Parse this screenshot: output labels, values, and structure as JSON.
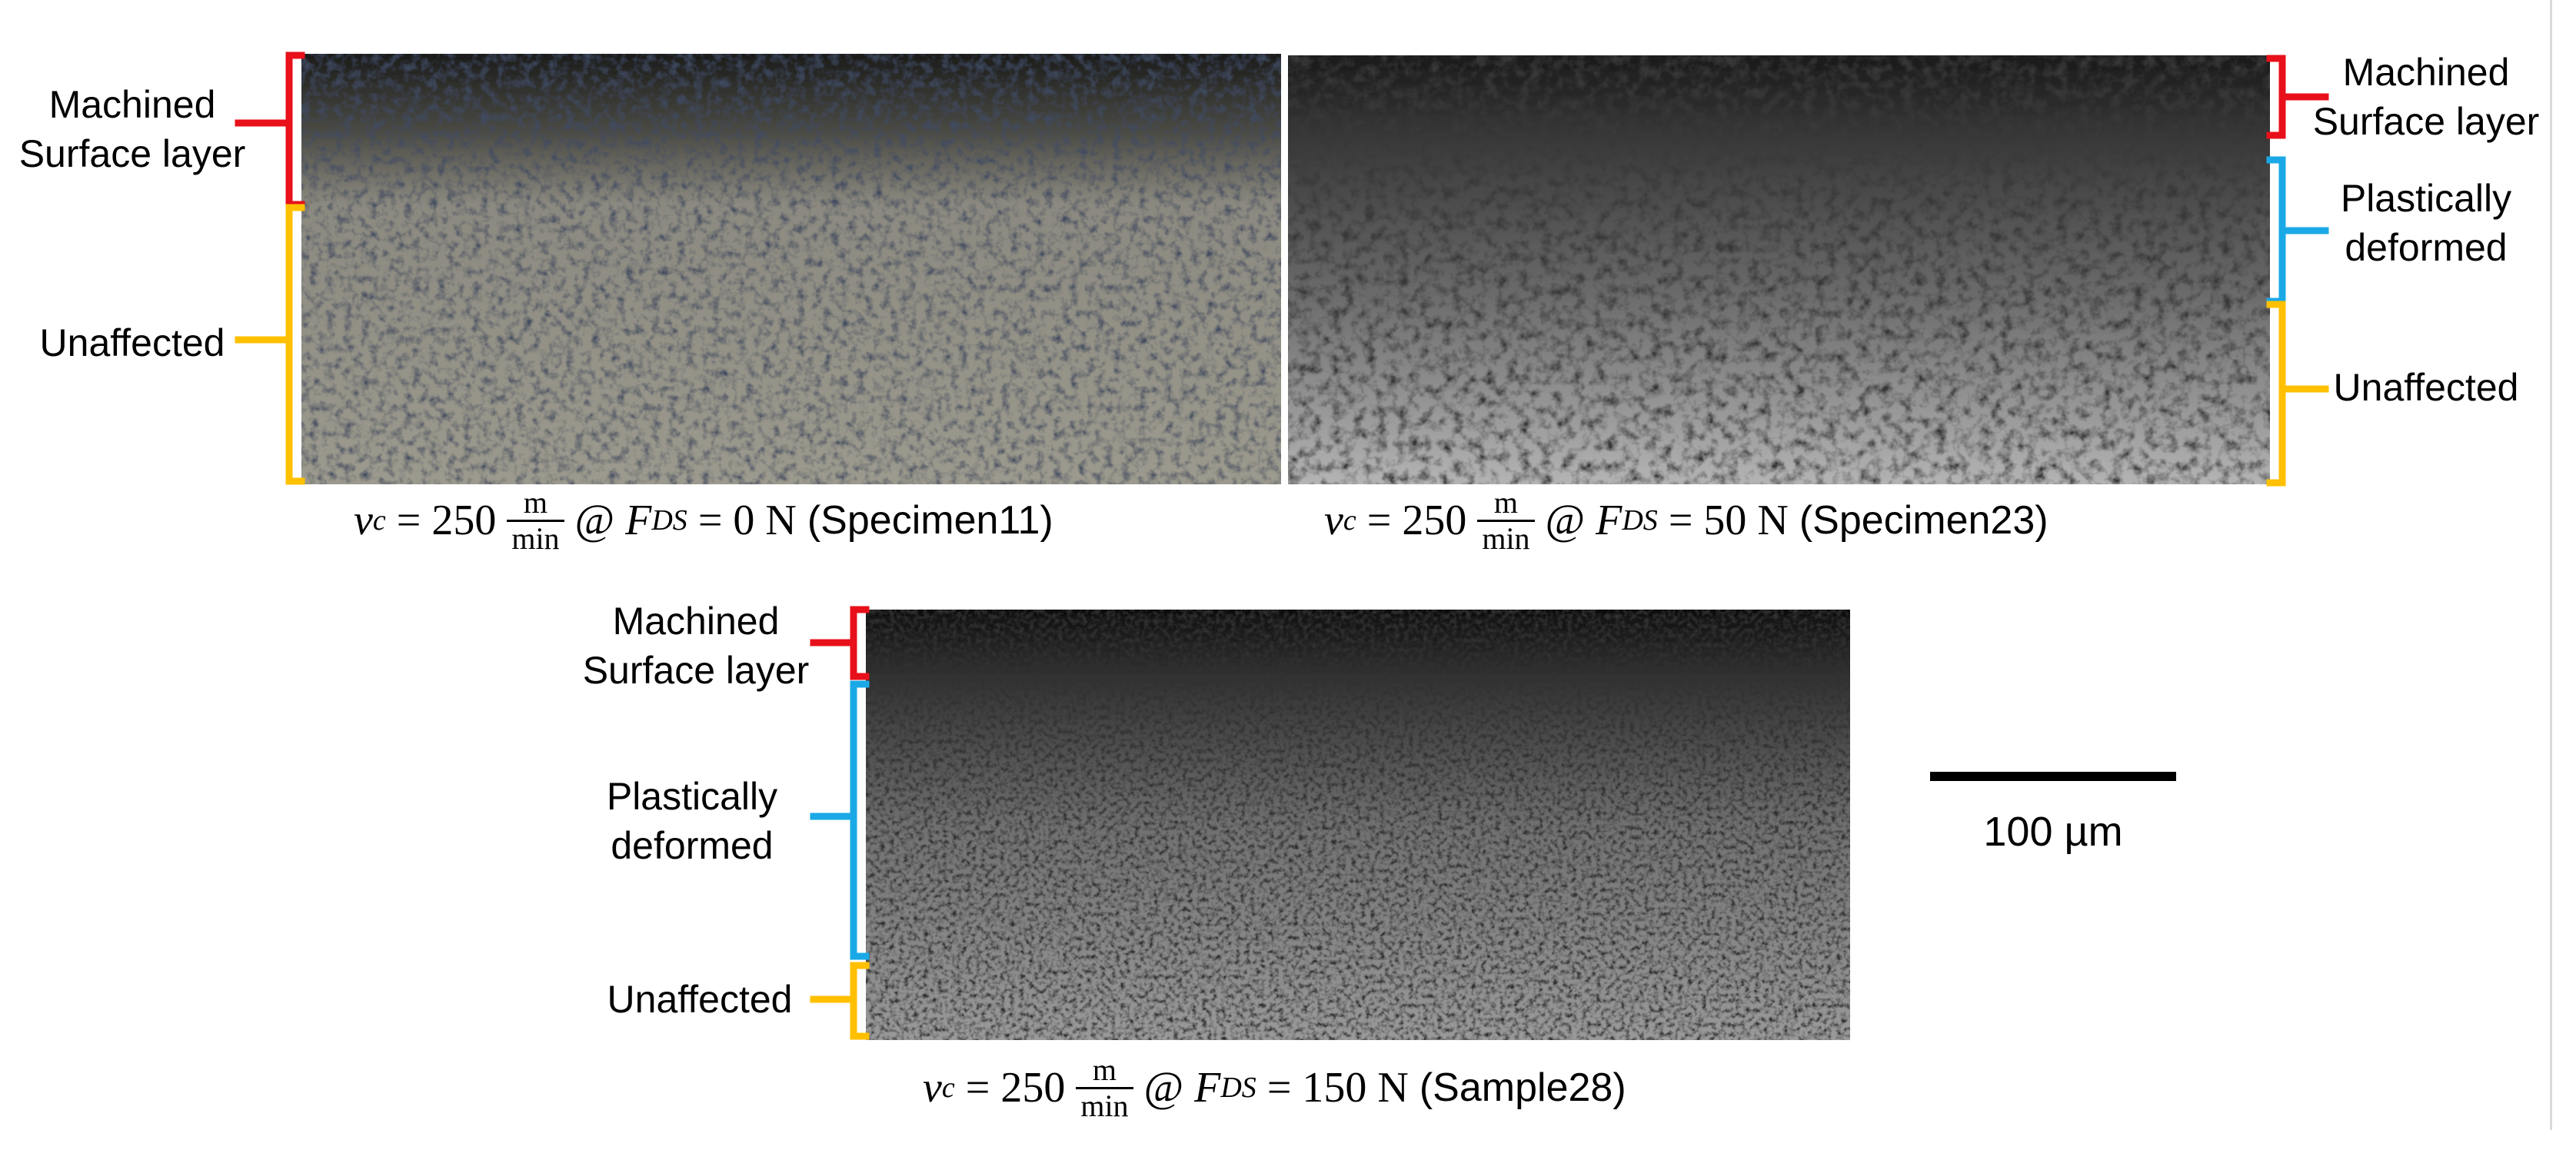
{
  "panels": [
    {
      "name": "specimen11",
      "labels": [
        "Machined Surface layer",
        "Unaffected"
      ],
      "caption": {
        "var": "v",
        "var_sub": "c",
        "value": "250",
        "frac_num": "m",
        "frac_den": "min",
        "at": "@",
        "force": "F",
        "force_sub": "DS",
        "force_value": "0 N",
        "sample": "(Specimen11)"
      }
    },
    {
      "name": "specimen23",
      "labels": [
        "Machined Surface layer",
        "Plastically deformed",
        "Unaffected"
      ],
      "caption": {
        "var": "v",
        "var_sub": "c",
        "value": "250",
        "frac_num": "m",
        "frac_den": "min",
        "at": "@",
        "force": "F",
        "force_sub": "DS",
        "force_value": "50 N",
        "sample": "(Specimen23)"
      }
    },
    {
      "name": "sample28",
      "labels": [
        "Machined Surface layer",
        "Plastically deformed",
        "Unaffected"
      ],
      "caption": {
        "var": "v",
        "var_sub": "c",
        "value": "250",
        "frac_num": "m",
        "frac_den": "min",
        "at": "@",
        "force": "F",
        "force_sub": "DS",
        "force_value": "150 N",
        "sample": "(Sample28)"
      }
    }
  ],
  "label_lines": {
    "machined": [
      "Machined",
      "Surface layer"
    ],
    "plastic": [
      "Plastically",
      "deformed"
    ],
    "unaffected": [
      "Unaffected"
    ]
  },
  "scale_bar": {
    "label": "100 µm"
  },
  "colors": {
    "machined": "#e8101a",
    "plastic": "#1aa9e6",
    "unaffected": "#ffc000"
  }
}
